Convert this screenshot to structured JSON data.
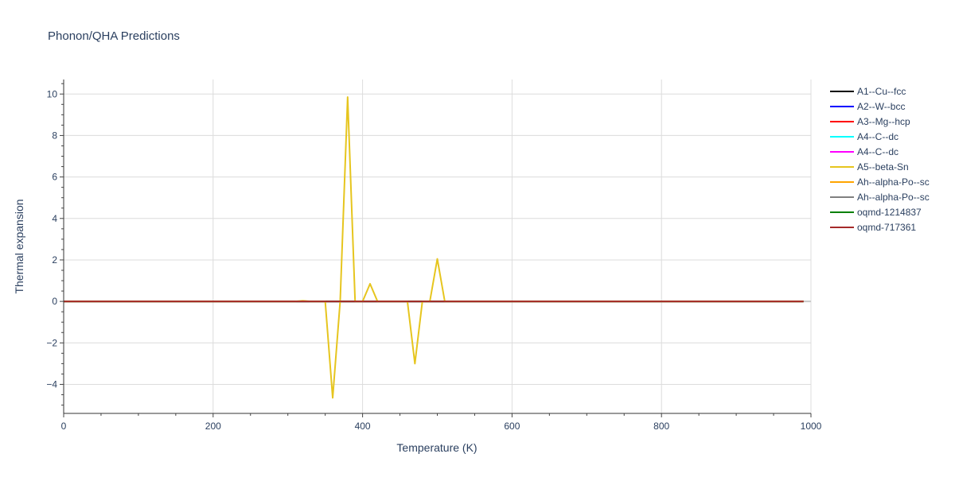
{
  "chart_data": {
    "type": "line",
    "title": "Phonon/QHA Predictions",
    "xlabel": "Temperature (K)",
    "ylabel": "Thermal expansion",
    "xlim": [
      0,
      1000
    ],
    "ylim": [
      -5.4,
      10.7
    ],
    "x_ticks": [
      0,
      200,
      400,
      600,
      800,
      1000
    ],
    "y_ticks": [
      -4,
      -2,
      0,
      2,
      4,
      6,
      8,
      10
    ],
    "grid": true,
    "legend_position": "right",
    "series": [
      {
        "name": "A1--Cu--fcc",
        "color": "#000000",
        "x": [
          0,
          990
        ],
        "y": [
          0,
          0
        ]
      },
      {
        "name": "A2--W--bcc",
        "color": "#0000ff",
        "x": [
          0,
          990
        ],
        "y": [
          0,
          0
        ]
      },
      {
        "name": "A3--Mg--hcp",
        "color": "#ff0000",
        "x": [
          0,
          990
        ],
        "y": [
          0,
          0
        ]
      },
      {
        "name": "A4--C--dc",
        "color": "#00ffff",
        "x": [
          0,
          990
        ],
        "y": [
          0,
          0
        ]
      },
      {
        "name": "A4--C--dc",
        "color": "#ff00ff",
        "x": [
          0,
          990
        ],
        "y": [
          0,
          0
        ]
      },
      {
        "name": "A5--beta-Sn",
        "color": "#e6c51e",
        "x": [
          0,
          310,
          320,
          330,
          340,
          350,
          360,
          370,
          380,
          390,
          400,
          410,
          420,
          430,
          440,
          450,
          460,
          470,
          480,
          490,
          500,
          510,
          520,
          990
        ],
        "y": [
          0,
          0,
          0.03,
          0,
          0,
          0,
          -4.65,
          0,
          9.85,
          0,
          0,
          0.85,
          0,
          0,
          0,
          0,
          0,
          -3.0,
          0,
          0,
          2.05,
          0,
          0,
          0
        ]
      },
      {
        "name": "Ah--alpha-Po--sc",
        "color": "#ffa500",
        "x": [
          0,
          990
        ],
        "y": [
          0,
          0
        ]
      },
      {
        "name": "Ah--alpha-Po--sc",
        "color": "#808080",
        "x": [
          0,
          990
        ],
        "y": [
          0,
          0
        ]
      },
      {
        "name": "oqmd-1214837",
        "color": "#008000",
        "x": [
          0,
          990
        ],
        "y": [
          0,
          0
        ]
      },
      {
        "name": "oqmd-717361",
        "color": "#a52a2a",
        "x": [
          0,
          990
        ],
        "y": [
          0,
          0
        ]
      }
    ]
  }
}
